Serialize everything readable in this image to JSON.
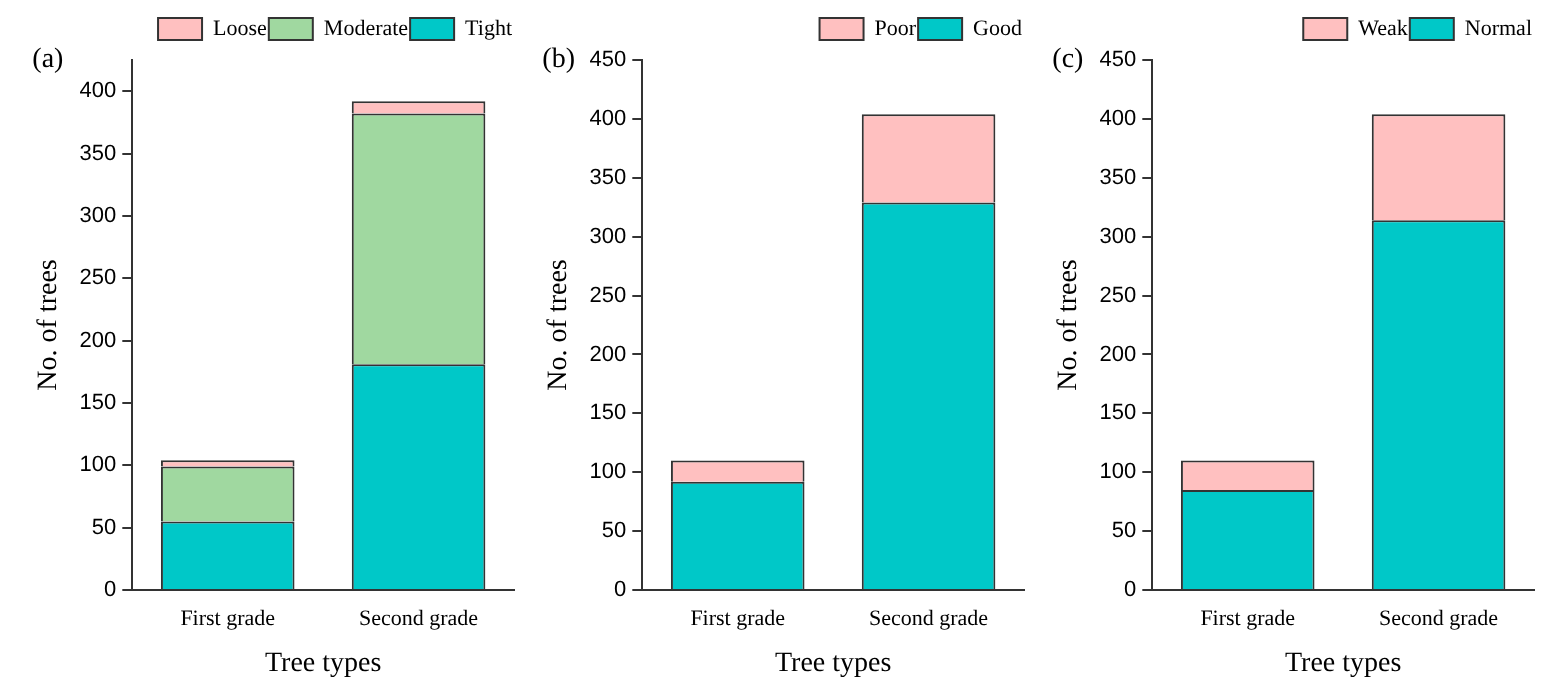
{
  "chart_data": [
    {
      "type": "bar",
      "title": "(a)",
      "xlabel": "Tree types",
      "ylabel": "No. of trees",
      "categories": [
        "First grade",
        "Second grade"
      ],
      "stacked": true,
      "ylim": [
        0,
        425
      ],
      "yticks": [
        0,
        50,
        100,
        150,
        200,
        250,
        300,
        350,
        400
      ],
      "grid": false,
      "legend": "top right",
      "series": [
        {
          "name": "Tight",
          "color": "#00c8c8",
          "values": [
            55,
            181
          ]
        },
        {
          "name": "Moderate",
          "color": "#a0d8a0",
          "values": [
            44,
            201
          ]
        },
        {
          "name": "Loose",
          "color": "#ffc0c0",
          "values": [
            5,
            10
          ]
        }
      ]
    },
    {
      "type": "bar",
      "title": "(b)",
      "xlabel": "Tree types",
      "ylabel": "No. of trees",
      "categories": [
        "First grade",
        "Second grade"
      ],
      "stacked": true,
      "ylim": [
        0,
        450
      ],
      "yticks": [
        0,
        50,
        100,
        150,
        200,
        250,
        300,
        350,
        400,
        450
      ],
      "grid": false,
      "legend": "top right",
      "series": [
        {
          "name": "Good",
          "color": "#00c8c8",
          "values": [
            92,
            329
          ]
        },
        {
          "name": "Poor",
          "color": "#ffc0c0",
          "values": [
            18,
            75
          ]
        }
      ]
    },
    {
      "type": "bar",
      "title": "(c)",
      "xlabel": "Tree types",
      "ylabel": "No. of trees",
      "categories": [
        "First grade",
        "Second grade"
      ],
      "stacked": true,
      "ylim": [
        0,
        450
      ],
      "yticks": [
        0,
        50,
        100,
        150,
        200,
        250,
        300,
        350,
        400,
        450
      ],
      "grid": false,
      "legend": "top right",
      "series": [
        {
          "name": "Normal",
          "color": "#00c8c8",
          "values": [
            85,
            314
          ]
        },
        {
          "name": "Weak",
          "color": "#ffc0c0",
          "values": [
            25,
            90
          ]
        }
      ]
    }
  ]
}
